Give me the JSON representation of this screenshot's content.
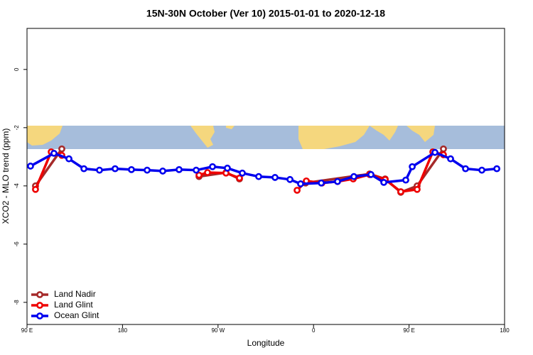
{
  "chart_data": {
    "type": "line",
    "title": "15N-30N October (Ver 10)   2015-01-01 to 2020-12-18",
    "x_label": "Longitude",
    "y_label": "XCO2 - MLO trend (ppm)",
    "xlim": [
      90,
      540
    ],
    "xticks": [
      {
        "value": 90,
        "label": "90 E"
      },
      180,
      {
        "value": 270,
        "label": "90 W"
      },
      {
        "value": 360,
        "label": "0"
      },
      {
        "value": 450,
        "label": "90 E"
      },
      {
        "value": 540,
        "label": "180"
      }
    ],
    "ylim": [
      -8.76,
      1.41
    ],
    "yticks": [
      0,
      -2,
      -4,
      -6,
      -8
    ],
    "legend": "bottom-left",
    "series": [
      {
        "name": "Land Nadir",
        "color": "#a52a2a",
        "x": [
          98.0,
          122.8,
          null,
          252.1,
          277.5,
          290.2,
          null,
          352.5,
          412.8,
          427.5,
          442.2,
          457.6,
          482.4
        ],
        "values": [
          -4.0,
          -2.73,
          null,
          -3.68,
          -3.54,
          -3.76,
          null,
          -3.9,
          -3.59,
          -3.76,
          -4.22,
          -4.0,
          -2.73
        ]
      },
      {
        "name": "Land Glint",
        "color": "#ee0000",
        "x": [
          98.0,
          112.8,
          122.8,
          null,
          252.1,
          260.1,
          277.5,
          290.2,
          null,
          344.5,
          353.2,
          367.9,
          382.6,
          397.4,
          412.8,
          427.5,
          442.2,
          457.6,
          472.4,
          482.4
        ],
        "values": [
          -4.12,
          -2.83,
          -2.95,
          null,
          -3.63,
          -3.54,
          -3.56,
          -3.73,
          null,
          -4.15,
          -3.83,
          -3.9,
          -3.85,
          -3.76,
          -3.61,
          -3.78,
          -4.2,
          -4.12,
          -2.83,
          -2.93
        ]
      },
      {
        "name": "Ocean Glint",
        "color": "#0000ee",
        "x": [
          93.3,
          115.4,
          129.5,
          143.6,
          158.3,
          173.0,
          188.4,
          203.2,
          217.9,
          233.3,
          249.4,
          264.8,
          278.8,
          292.9,
          308.3,
          323.7,
          337.8,
          347.8,
          367.3,
          382.6,
          398.0,
          414.1,
          426.2,
          446.9,
          453.0,
          474.4,
          489.1,
          503.2,
          518.6,
          532.7
        ],
        "values": [
          -3.32,
          -2.88,
          -3.07,
          -3.41,
          -3.46,
          -3.41,
          -3.44,
          -3.46,
          -3.49,
          -3.44,
          -3.46,
          -3.34,
          -3.39,
          -3.56,
          -3.68,
          -3.71,
          -3.78,
          -3.93,
          -3.9,
          -3.85,
          -3.68,
          -3.61,
          -3.88,
          -3.8,
          -3.34,
          -2.85,
          -3.07,
          -3.41,
          -3.46,
          -3.41
        ]
      }
    ]
  }
}
